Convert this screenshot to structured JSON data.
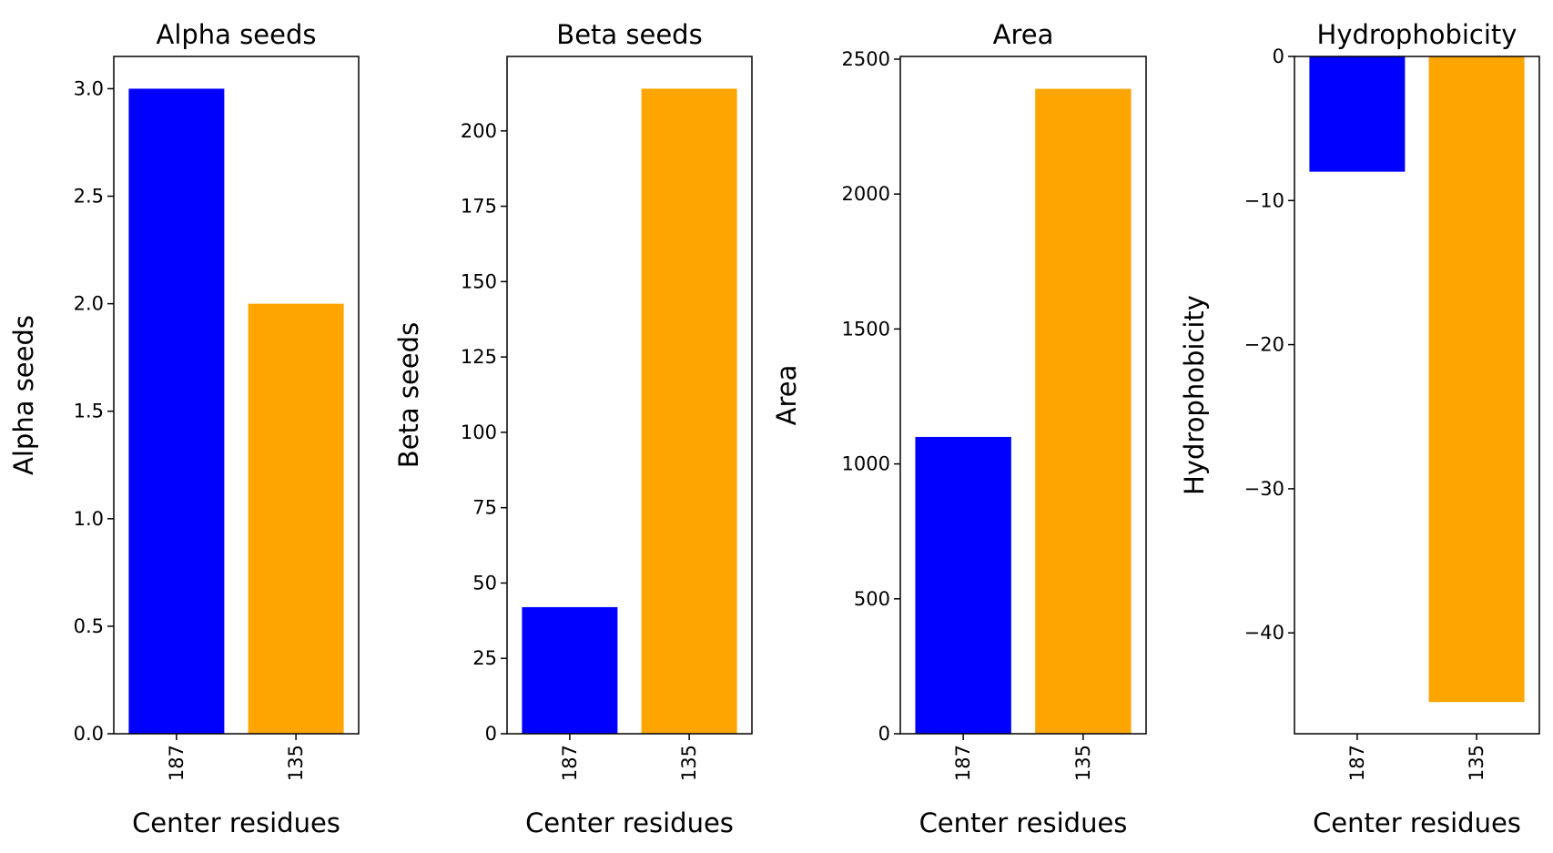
{
  "chart_data": [
    {
      "type": "bar",
      "title": "Alpha seeds",
      "xlabel": "Center residues",
      "ylabel": "Alpha seeds",
      "categories": [
        "187",
        "135"
      ],
      "values": [
        3.0,
        2.0
      ],
      "colors": [
        "#0000ff",
        "#ffa500"
      ],
      "ylim": [
        0,
        3.15
      ],
      "yticks": [
        0.0,
        0.5,
        1.0,
        1.5,
        2.0,
        2.5,
        3.0
      ],
      "ytick_labels": [
        "0.0",
        "0.5",
        "1.0",
        "1.5",
        "2.0",
        "2.5",
        "3.0"
      ],
      "grid": false,
      "legend": "none"
    },
    {
      "type": "bar",
      "title": "Beta seeds",
      "xlabel": "Center residues",
      "ylabel": "Beta seeds",
      "categories": [
        "187",
        "135"
      ],
      "values": [
        42,
        214
      ],
      "colors": [
        "#0000ff",
        "#ffa500"
      ],
      "ylim": [
        0,
        224.7
      ],
      "yticks": [
        0,
        25,
        50,
        75,
        100,
        125,
        150,
        175,
        200
      ],
      "ytick_labels": [
        "0",
        "25",
        "50",
        "75",
        "100",
        "125",
        "150",
        "175",
        "200"
      ],
      "grid": false,
      "legend": "none"
    },
    {
      "type": "bar",
      "title": "Area",
      "xlabel": "Center residues",
      "ylabel": "Area",
      "categories": [
        "187",
        "135"
      ],
      "values": [
        1100,
        2390
      ],
      "colors": [
        "#0000ff",
        "#ffa500"
      ],
      "ylim": [
        0,
        2510
      ],
      "yticks": [
        0,
        500,
        1000,
        1500,
        2000,
        2500
      ],
      "ytick_labels": [
        "0",
        "500",
        "1000",
        "1500",
        "2000",
        "2500"
      ],
      "grid": false,
      "legend": "none"
    },
    {
      "type": "bar",
      "title": "Hydrophobicity",
      "xlabel": "Center residues",
      "ylabel": "Hydrophobicity",
      "categories": [
        "187",
        "135"
      ],
      "values": [
        -8.0,
        -44.8
      ],
      "colors": [
        "#0000ff",
        "#ffa500"
      ],
      "ylim": [
        -47.0,
        0
      ],
      "yticks": [
        0,
        -10,
        -20,
        -30,
        -40
      ],
      "ytick_labels": [
        "0",
        "−10",
        "−20",
        "−30",
        "−40"
      ],
      "grid": false,
      "legend": "none"
    }
  ]
}
